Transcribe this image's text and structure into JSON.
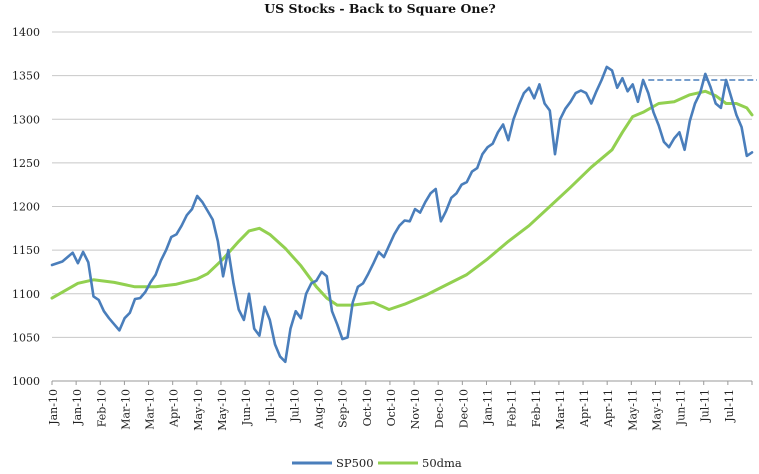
{
  "chart_data": {
    "type": "line",
    "title": "US Stocks  - Back to Square One?",
    "xlabel": "",
    "ylabel": "",
    "ylim": [
      1000,
      1400
    ],
    "yticks": [
      1000,
      1050,
      1100,
      1150,
      1200,
      1250,
      1300,
      1350,
      1400
    ],
    "grid": "horizontal",
    "legend": "bottom",
    "x_tick_labels": [
      "Jan-10",
      "Jan-10",
      "Feb-10",
      "Mar-10",
      "Mar-10",
      "Apr-10",
      "May-10",
      "May-10",
      "Jun-10",
      "Jul-10",
      "Jul-10",
      "Aug-10",
      "Sep-10",
      "Oct-10",
      "Oct-10",
      "Nov-10",
      "Dec-10",
      "Dec-10",
      "Jan-11",
      "Feb-11",
      "Feb-11",
      "Mar-11",
      "Apr-11",
      "Apr-11",
      "May-11",
      "May-11",
      "Jun-11",
      "Jul-11",
      "Jul-11"
    ],
    "series": [
      {
        "name": "SP500",
        "color": "#4a7ebb",
        "points": [
          [
            0,
            1133
          ],
          [
            2,
            1137
          ],
          [
            4,
            1147
          ],
          [
            5,
            1135
          ],
          [
            6,
            1148
          ],
          [
            7,
            1136
          ],
          [
            8,
            1097
          ],
          [
            9,
            1093
          ],
          [
            10,
            1080
          ],
          [
            11,
            1072
          ],
          [
            12,
            1065
          ],
          [
            13,
            1058
          ],
          [
            14,
            1072
          ],
          [
            15,
            1078
          ],
          [
            16,
            1094
          ],
          [
            17,
            1095
          ],
          [
            18,
            1102
          ],
          [
            19,
            1113
          ],
          [
            20,
            1122
          ],
          [
            21,
            1138
          ],
          [
            22,
            1150
          ],
          [
            23,
            1165
          ],
          [
            24,
            1168
          ],
          [
            25,
            1178
          ],
          [
            26,
            1190
          ],
          [
            27,
            1197
          ],
          [
            28,
            1212
          ],
          [
            29,
            1205
          ],
          [
            30,
            1195
          ],
          [
            31,
            1185
          ],
          [
            32,
            1160
          ],
          [
            33,
            1120
          ],
          [
            34,
            1150
          ],
          [
            35,
            1112
          ],
          [
            36,
            1082
          ],
          [
            37,
            1070
          ],
          [
            38,
            1100
          ],
          [
            39,
            1060
          ],
          [
            40,
            1052
          ],
          [
            41,
            1085
          ],
          [
            42,
            1070
          ],
          [
            43,
            1042
          ],
          [
            44,
            1028
          ],
          [
            45,
            1022
          ],
          [
            46,
            1060
          ],
          [
            47,
            1080
          ],
          [
            48,
            1072
          ],
          [
            49,
            1100
          ],
          [
            50,
            1112
          ],
          [
            51,
            1115
          ],
          [
            52,
            1125
          ],
          [
            53,
            1120
          ],
          [
            54,
            1080
          ],
          [
            55,
            1065
          ],
          [
            56,
            1048
          ],
          [
            57,
            1050
          ],
          [
            58,
            1090
          ],
          [
            59,
            1108
          ],
          [
            60,
            1112
          ],
          [
            61,
            1123
          ],
          [
            62,
            1135
          ],
          [
            63,
            1148
          ],
          [
            64,
            1142
          ],
          [
            65,
            1155
          ],
          [
            66,
            1168
          ],
          [
            67,
            1178
          ],
          [
            68,
            1184
          ],
          [
            69,
            1183
          ],
          [
            70,
            1197
          ],
          [
            71,
            1193
          ],
          [
            72,
            1205
          ],
          [
            73,
            1215
          ],
          [
            74,
            1220
          ],
          [
            75,
            1183
          ],
          [
            76,
            1195
          ],
          [
            77,
            1210
          ],
          [
            78,
            1215
          ],
          [
            79,
            1225
          ],
          [
            80,
            1228
          ],
          [
            81,
            1240
          ],
          [
            82,
            1244
          ],
          [
            83,
            1260
          ],
          [
            84,
            1268
          ],
          [
            85,
            1272
          ],
          [
            86,
            1285
          ],
          [
            87,
            1294
          ],
          [
            88,
            1276
          ],
          [
            89,
            1300
          ],
          [
            90,
            1316
          ],
          [
            91,
            1330
          ],
          [
            92,
            1336
          ],
          [
            93,
            1324
          ],
          [
            94,
            1340
          ],
          [
            95,
            1318
          ],
          [
            96,
            1310
          ],
          [
            97,
            1260
          ],
          [
            98,
            1300
          ],
          [
            99,
            1312
          ],
          [
            100,
            1320
          ],
          [
            101,
            1330
          ],
          [
            102,
            1333
          ],
          [
            103,
            1330
          ],
          [
            104,
            1318
          ],
          [
            105,
            1332
          ],
          [
            106,
            1345
          ],
          [
            107,
            1360
          ],
          [
            108,
            1356
          ],
          [
            109,
            1336
          ],
          [
            110,
            1347
          ],
          [
            111,
            1332
          ],
          [
            112,
            1340
          ],
          [
            113,
            1320
          ],
          [
            114,
            1345
          ],
          [
            115,
            1330
          ],
          [
            116,
            1308
          ],
          [
            117,
            1293
          ],
          [
            118,
            1274
          ],
          [
            119,
            1268
          ],
          [
            120,
            1278
          ],
          [
            121,
            1285
          ],
          [
            122,
            1265
          ],
          [
            123,
            1298
          ],
          [
            124,
            1318
          ],
          [
            125,
            1330
          ],
          [
            126,
            1352
          ],
          [
            127,
            1337
          ],
          [
            128,
            1318
          ],
          [
            129,
            1313
          ],
          [
            130,
            1345
          ],
          [
            131,
            1325
          ],
          [
            132,
            1305
          ],
          [
            133,
            1291
          ],
          [
            134,
            1258
          ],
          [
            135,
            1262
          ]
        ]
      },
      {
        "name": "50dma",
        "color": "#92d050",
        "points": [
          [
            0,
            1095
          ],
          [
            5,
            1112
          ],
          [
            8,
            1116
          ],
          [
            12,
            1113
          ],
          [
            16,
            1108
          ],
          [
            20,
            1108
          ],
          [
            24,
            1111
          ],
          [
            28,
            1117
          ],
          [
            30,
            1123
          ],
          [
            33,
            1140
          ],
          [
            36,
            1160
          ],
          [
            38,
            1172
          ],
          [
            40,
            1175
          ],
          [
            42,
            1168
          ],
          [
            45,
            1152
          ],
          [
            48,
            1132
          ],
          [
            51,
            1108
          ],
          [
            53,
            1095
          ],
          [
            55,
            1087
          ],
          [
            58,
            1087
          ],
          [
            62,
            1090
          ],
          [
            65,
            1082
          ],
          [
            68,
            1088
          ],
          [
            72,
            1098
          ],
          [
            76,
            1110
          ],
          [
            80,
            1122
          ],
          [
            84,
            1140
          ],
          [
            88,
            1160
          ],
          [
            92,
            1178
          ],
          [
            96,
            1200
          ],
          [
            100,
            1222
          ],
          [
            104,
            1245
          ],
          [
            108,
            1265
          ],
          [
            110,
            1285
          ],
          [
            112,
            1303
          ],
          [
            114,
            1308
          ],
          [
            117,
            1318
          ],
          [
            120,
            1320
          ],
          [
            123,
            1328
          ],
          [
            126,
            1332
          ],
          [
            128,
            1327
          ],
          [
            130,
            1318
          ],
          [
            132,
            1318
          ],
          [
            134,
            1313
          ],
          [
            135,
            1305
          ]
        ]
      }
    ],
    "resistance_line": {
      "y": 1345,
      "from": 115,
      "to": 141,
      "style": "dashed",
      "color": "#4a7ebb"
    }
  }
}
